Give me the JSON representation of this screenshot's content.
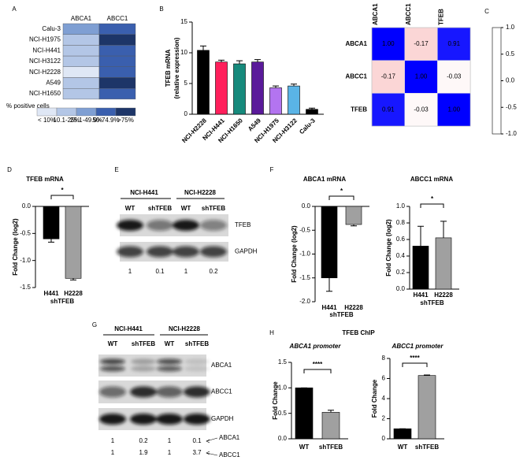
{
  "chart_data": [
    {
      "type": "heatmap",
      "label": "A",
      "columns": [
        "ABCA1",
        "ABCC1"
      ],
      "rows": [
        "Calu-3",
        "NCI-H1975",
        "NCI-H441",
        "NCI-H3122",
        "NCI-H2228",
        "A549",
        "NCI-H1650"
      ],
      "values": [
        [
          2,
          3
        ],
        [
          1,
          4
        ],
        [
          1,
          3
        ],
        [
          1,
          3
        ],
        [
          0,
          3
        ],
        [
          1,
          4
        ],
        [
          1,
          3
        ]
      ],
      "scale_title": "% positive cells",
      "scale_labels": [
        "< 10%",
        "10.1-25%",
        "25.1-49.9%",
        "50-74.9%",
        ">75%"
      ],
      "scale_colors": [
        "#dfe7f5",
        "#b3c6e6",
        "#7f9fd3",
        "#3a5fae",
        "#1d3568"
      ]
    },
    {
      "type": "bar",
      "label": "B",
      "ylabel": [
        "TFEB mRNA",
        "(relative expression)"
      ],
      "categories": [
        "NCI-H2228",
        "NCI-H441",
        "NCI-H1650",
        "A549",
        "NCI-H1975",
        "NCI-H3122",
        "Calu-3"
      ],
      "values": [
        10.4,
        8.5,
        8.2,
        8.5,
        4.3,
        4.6,
        0.8
      ],
      "errors": [
        0.7,
        0.3,
        0.5,
        0.4,
        0.3,
        0.3,
        0.2
      ],
      "colors": [
        "#000000",
        "#ff1f5b",
        "#168a7c",
        "#5a1a9a",
        "#b374f0",
        "#5ab4e6",
        "#000000"
      ],
      "ylim": [
        0,
        15
      ],
      "yticks": [
        0,
        5,
        10,
        15
      ]
    },
    {
      "type": "correlation",
      "label": "C",
      "labels": [
        "ABCA1",
        "ABCC1",
        "TFEB"
      ],
      "values": [
        [
          1.0,
          -0.17,
          0.91
        ],
        [
          -0.17,
          1.0,
          -0.03
        ],
        [
          0.91,
          -0.03,
          1.0
        ]
      ],
      "value_labels": [
        [
          "1.00",
          "-0.17",
          "0.91"
        ],
        [
          "-0.17",
          "1.00",
          "-0.03"
        ],
        [
          "0.91",
          "-0.03",
          "1.00"
        ]
      ],
      "positive_color": "#0000ff",
      "negative_color": "#e81010",
      "clim": [
        -1,
        1
      ],
      "colorbar_ticks": [
        {
          "value": 1,
          "label": "1.0"
        },
        {
          "value": 0.5,
          "label": "0.5"
        },
        {
          "value": 0,
          "label": "0.0"
        },
        {
          "value": -0.5,
          "label": "-0.5"
        },
        {
          "value": -1,
          "label": "-1.0"
        }
      ]
    },
    {
      "type": "bar",
      "label": "D",
      "title": "TFEB mRNA",
      "ylabel": "Fold Change (log2)",
      "xlabel": "shTFEB",
      "categories": [
        "H441",
        "H2228"
      ],
      "values": [
        -0.6,
        -1.33
      ],
      "errors": [
        0.06,
        0.03
      ],
      "colors": [
        "#000000",
        "#a0a0a0"
      ],
      "ylim": [
        -1.5,
        0
      ],
      "annotation": "*",
      "yticks": [
        {
          "value": 0,
          "label": "0.0"
        },
        {
          "value": -0.5,
          "label": "-0.5"
        },
        {
          "value": -1,
          "label": "-1.0"
        },
        {
          "value": -1.5,
          "label": "-1.5"
        }
      ]
    },
    {
      "type": "blot",
      "label": "E",
      "groups": [
        "NCI-H441",
        "NCI-H2228"
      ],
      "lanes": [
        "WT",
        "shTFEB",
        "WT",
        "shTFEB"
      ],
      "rows": [
        "TFEB",
        "GAPDH"
      ],
      "quant": [
        [
          1,
          0.1,
          1,
          0.2
        ]
      ]
    },
    {
      "type": "bar",
      "label": "F",
      "title": "ABCA1 mRNA",
      "ylabel": "Fold Change (log2)",
      "xlabel": "shTFEB",
      "categories": [
        "H441",
        "H2228"
      ],
      "values": [
        -1.5,
        -0.38
      ],
      "errors": [
        0.28,
        0.03
      ],
      "colors": [
        "#000000",
        "#a0a0a0"
      ],
      "ylim": [
        -2,
        0
      ],
      "annotation": "*",
      "yticks": [
        {
          "value": 0,
          "label": "0.0"
        },
        {
          "value": -0.5,
          "label": "-0.5"
        },
        {
          "value": -1,
          "label": "-1.0"
        },
        {
          "value": -1.5,
          "label": "-1.5"
        },
        {
          "value": -2,
          "label": "-2.0"
        }
      ]
    },
    {
      "type": "bar",
      "title": "ABCC1 mRNA",
      "ylabel": "Fold Change (log2)",
      "xlabel": "shTFEB",
      "categories": [
        "H441",
        "H2228"
      ],
      "values": [
        0.52,
        0.62
      ],
      "errors": [
        0.24,
        0.2
      ],
      "colors": [
        "#000000",
        "#a0a0a0"
      ],
      "ylim": [
        0,
        1
      ],
      "annotation": "*",
      "yticks": [
        {
          "value": 0,
          "label": "0.0"
        },
        0.2,
        0.4,
        0.6,
        0.8,
        {
          "value": 1,
          "label": "1.0"
        }
      ]
    },
    {
      "type": "blot",
      "label": "G",
      "groups": [
        "NCI-H441",
        "NCI-H2228"
      ],
      "lanes": [
        "WT",
        "shTFEB",
        "WT",
        "shTFEB"
      ],
      "rows": [
        "ABCA1",
        "ABCC1",
        "GAPDH"
      ],
      "quant": [
        [
          1,
          0.2,
          1,
          0.1
        ],
        [
          1,
          1.9,
          1,
          3.7
        ]
      ],
      "quant_labels": [
        "ABCA1",
        "ABCC1"
      ]
    },
    {
      "type": "bar",
      "label": "H",
      "title": "TFEB ChIP",
      "subtitle": "ABCA1 promoter",
      "ylabel": "Fold Change",
      "categories": [
        "WT",
        "shTFEB"
      ],
      "values": [
        1.0,
        0.52
      ],
      "errors": [
        0,
        0.04
      ],
      "colors": [
        "#000000",
        "#a0a0a0"
      ],
      "ylim": [
        0,
        1.5
      ],
      "annotation": "****",
      "yticks": [
        {
          "value": 0,
          "label": "0.0"
        },
        0.5,
        {
          "value": 1,
          "label": "1.0"
        },
        1.5
      ]
    },
    {
      "type": "bar",
      "subtitle": "ABCC1 promoter",
      "ylabel": "Fold Change",
      "categories": [
        "WT",
        "shTFEB"
      ],
      "values": [
        1,
        6.3
      ],
      "errors": [
        0,
        0.05
      ],
      "colors": [
        "#000000",
        "#a0a0a0"
      ],
      "ylim": [
        0,
        8
      ],
      "annotation": "****",
      "yticks": [
        0,
        2,
        4,
        6,
        8
      ]
    }
  ]
}
